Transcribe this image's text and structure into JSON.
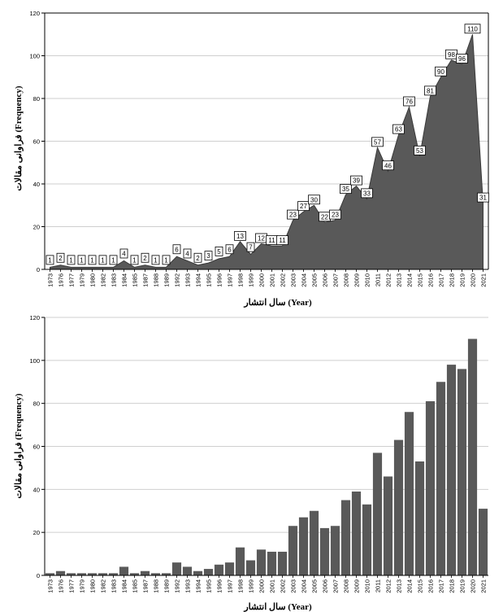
{
  "chart_data": [
    {
      "type": "area",
      "ylabel": "فراوانی مقالات (Frequency)",
      "xlabel": "سال انتشار (Year)",
      "ylim": [
        0,
        120
      ],
      "yticks": [
        0,
        20,
        40,
        60,
        80,
        100,
        120
      ],
      "grid": true,
      "data_labels": true,
      "fill_color": "#595959",
      "categories": [
        "1973",
        "1976",
        "1977",
        "1979",
        "1980",
        "1982",
        "1983",
        "1984",
        "1985",
        "1987",
        "1988",
        "1989",
        "1992",
        "1993",
        "1994",
        "1995",
        "1996",
        "1997",
        "1998",
        "1999",
        "2000",
        "2001",
        "2002",
        "2003",
        "2004",
        "2005",
        "2006",
        "2007",
        "2008",
        "2009",
        "2010",
        "2011",
        "2012",
        "2013",
        "2014",
        "2015",
        "2016",
        "2017",
        "2018",
        "2019",
        "2020",
        "2021"
      ],
      "values": [
        1,
        2,
        1,
        1,
        1,
        1,
        1,
        4,
        1,
        2,
        1,
        1,
        6,
        4,
        2,
        3,
        5,
        6,
        13,
        7,
        12,
        11,
        11,
        23,
        27,
        30,
        22,
        23,
        35,
        39,
        33,
        57,
        46,
        63,
        76,
        53,
        81,
        90,
        98,
        96,
        110,
        31
      ]
    },
    {
      "type": "bar",
      "ylabel": "فراوانی مقالات (Frequency)",
      "xlabel": "سال انتشار (Year)",
      "ylim": [
        0,
        120
      ],
      "yticks": [
        0,
        20,
        40,
        60,
        80,
        100,
        120
      ],
      "grid": true,
      "bar_color": "#595959",
      "categories": [
        "1973",
        "1976",
        "1977",
        "1979",
        "1980",
        "1982",
        "1983",
        "1984",
        "1985",
        "1987",
        "1988",
        "1989",
        "1992",
        "1993",
        "1994",
        "1995",
        "1996",
        "1997",
        "1998",
        "1999",
        "2000",
        "2001",
        "2002",
        "2003",
        "2004",
        "2005",
        "2006",
        "2007",
        "2008",
        "2009",
        "2010",
        "2011",
        "2012",
        "2013",
        "2014",
        "2015",
        "2016",
        "2017",
        "2018",
        "2019",
        "2020",
        "2021"
      ],
      "values": [
        1,
        2,
        1,
        1,
        1,
        1,
        1,
        4,
        1,
        2,
        1,
        1,
        6,
        4,
        2,
        3,
        5,
        6,
        13,
        7,
        12,
        11,
        11,
        23,
        27,
        30,
        22,
        23,
        35,
        39,
        33,
        57,
        46,
        63,
        76,
        53,
        81,
        90,
        98,
        96,
        110,
        31
      ]
    }
  ]
}
